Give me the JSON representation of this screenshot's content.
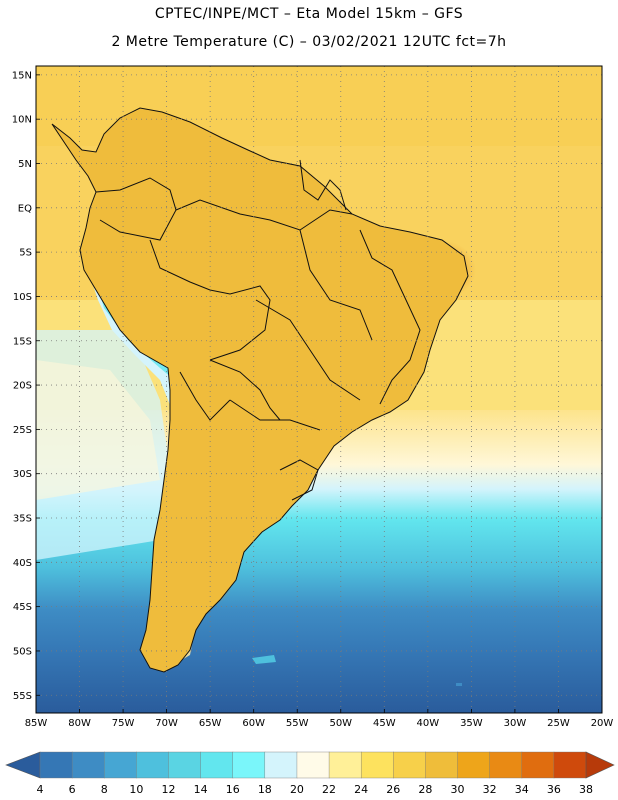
{
  "header": {
    "line1": "CPTEC/INPE/MCT –  Eta Model 15km – GFS",
    "line2": "2 Metre Temperature (C) – 03/02/2021 12UTC fct=7h"
  },
  "map": {
    "lat_labels": [
      "15N",
      "10N",
      "5N",
      "EQ",
      "5S",
      "10S",
      "15S",
      "20S",
      "25S",
      "30S",
      "35S",
      "40S",
      "45S",
      "50S",
      "55S"
    ],
    "lon_labels": [
      "85W",
      "80W",
      "75W",
      "70W",
      "65W",
      "60W",
      "55W",
      "50W",
      "45W",
      "40W",
      "35W",
      "30W",
      "25W",
      "20W"
    ],
    "lon_range": [
      -85,
      -20
    ],
    "lat_range": [
      -57,
      16
    ],
    "grid": "dotted"
  },
  "colorbar": {
    "ticks": [
      "4",
      "6",
      "8",
      "10",
      "12",
      "14",
      "16",
      "18",
      "20",
      "22",
      "24",
      "26",
      "28",
      "30",
      "32",
      "34",
      "36",
      "38"
    ],
    "colors": [
      "#2a5c9c",
      "#3577b5",
      "#3e8cc4",
      "#46a6d3",
      "#4ec0dd",
      "#5ad4e3",
      "#62e6ee",
      "#7af6fa",
      "#d4f4fc",
      "#fffbe8",
      "#fff098",
      "#fde25e",
      "#f7d04a",
      "#efbd3a",
      "#eea51a",
      "#e98a14",
      "#e06d0f",
      "#cf4a0c",
      "#b73a0a"
    ]
  }
}
